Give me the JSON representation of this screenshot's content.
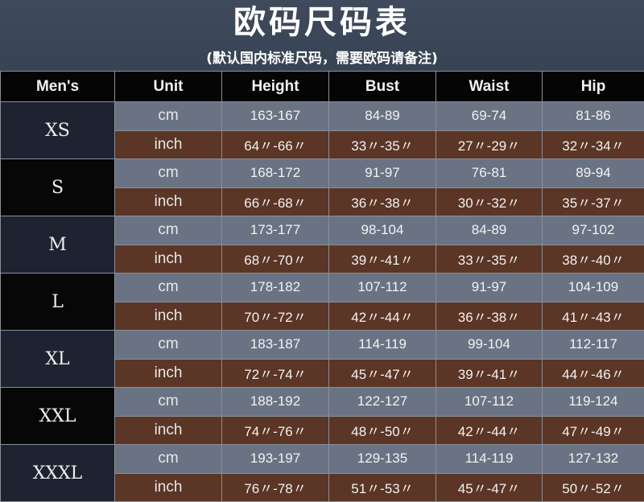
{
  "header": {
    "title": "欧码尺码表",
    "subtitle": "(默认国内标准尺码，需要欧码请备注)"
  },
  "table": {
    "columns": [
      "Men's",
      "Unit",
      "Height",
      "Bust",
      "Waist",
      "Hip"
    ],
    "sizes": [
      {
        "size": "XS",
        "cm": [
          "163-167",
          "84-89",
          "69-74",
          "81-86"
        ],
        "inch": [
          "64〃-66〃",
          "33〃-35〃",
          "27〃-29〃",
          "32〃-34〃"
        ]
      },
      {
        "size": "S",
        "cm": [
          "168-172",
          "91-97",
          "76-81",
          "89-94"
        ],
        "inch": [
          "66〃-68〃",
          "36〃-38〃",
          "30〃-32〃",
          "35〃-37〃"
        ]
      },
      {
        "size": "M",
        "cm": [
          "173-177",
          "98-104",
          "84-89",
          "97-102"
        ],
        "inch": [
          "68〃-70〃",
          "39〃-41〃",
          "33〃-35〃",
          "38〃-40〃"
        ]
      },
      {
        "size": "L",
        "cm": [
          "178-182",
          "107-112",
          "91-97",
          "104-109"
        ],
        "inch": [
          "70〃-72〃",
          "42〃-44〃",
          "36〃-38〃",
          "41〃-43〃"
        ]
      },
      {
        "size": "XL",
        "cm": [
          "183-187",
          "114-119",
          "99-104",
          "112-117"
        ],
        "inch": [
          "72〃-74〃",
          "45〃-47〃",
          "39〃-41〃",
          "44〃-46〃"
        ]
      },
      {
        "size": "XXL",
        "cm": [
          "188-192",
          "122-127",
          "107-112",
          "119-124"
        ],
        "inch": [
          "74〃-76〃",
          "48〃-50〃",
          "42〃-44〃",
          "47〃-49〃"
        ]
      },
      {
        "size": "XXXL",
        "cm": [
          "193-197",
          "129-135",
          "114-119",
          "127-132"
        ],
        "inch": [
          "76〃-78〃",
          "51〃-53〃",
          "45〃-47〃",
          "50〃-52〃"
        ]
      }
    ],
    "unit_labels": {
      "cm": "cm",
      "inch": "inch"
    }
  },
  "colors": {
    "banner": "#3c4758",
    "cm_row": "#6a7383",
    "inch_row": "#5b3525",
    "header_row": "#050505"
  }
}
